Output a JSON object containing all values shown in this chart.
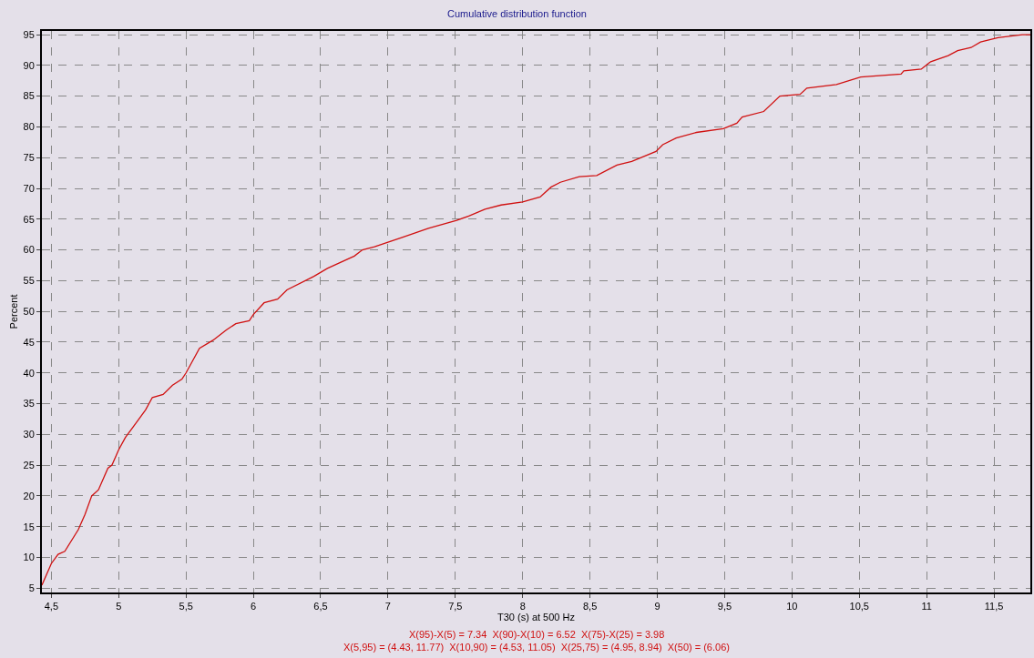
{
  "chart_data": {
    "type": "line",
    "title": "Cumulative distribution function",
    "xlabel": "T30 (s) at 500 Hz",
    "ylabel": "Percent",
    "annotations": [
      "X(95)-X(5) = 7.34  X(90)-X(10) = 6.52  X(75)-X(25) = 3.98",
      "X(5,95) = (4.43, 11.77)  X(10,90) = (4.53, 11.05)  X(25,75) = (4.95, 8.94)  X(50) = (6.06)"
    ],
    "series": [
      {
        "color": "#d01010",
        "x": [
          4.43,
          4.5,
          4.55,
          4.6,
          4.7,
          4.75,
          4.8,
          4.85,
          4.92,
          4.95,
          5.0,
          5.05,
          5.1,
          5.2,
          5.25,
          5.33,
          5.4,
          5.47,
          5.5,
          5.55,
          5.6,
          5.7,
          5.8,
          5.87,
          5.97,
          6.0,
          6.08,
          6.18,
          6.25,
          6.45,
          6.55,
          6.65,
          6.75,
          6.81,
          6.9,
          7.02,
          7.1,
          7.3,
          7.51,
          7.6,
          7.72,
          7.84,
          8.0,
          8.13,
          8.21,
          8.28,
          8.42,
          8.55,
          8.7,
          8.81,
          8.99,
          9.04,
          9.14,
          9.29,
          9.49,
          9.59,
          9.63,
          9.79,
          9.91,
          10.06,
          10.11,
          10.33,
          10.51,
          10.81,
          10.83,
          10.96,
          11.03,
          11.16,
          11.23,
          11.33,
          11.4,
          11.53,
          11.71,
          11.77
        ],
        "values": [
          5.5,
          9,
          10.5,
          11,
          14.5,
          17,
          20,
          21,
          24.5,
          25,
          27.5,
          29.5,
          31,
          34,
          36,
          36.5,
          38,
          39,
          40,
          42,
          44,
          45.3,
          47,
          48,
          48.5,
          49.5,
          51.4,
          52,
          53.5,
          55.7,
          57,
          58,
          59,
          60,
          60.5,
          61.4,
          62,
          63.5,
          64.8,
          65.5,
          66.6,
          67.3,
          67.8,
          68.6,
          70.2,
          71,
          71.9,
          72.1,
          73.8,
          74.4,
          76,
          77.1,
          78.2,
          79.1,
          79.7,
          80.6,
          81.6,
          82.5,
          85,
          85.3,
          86.3,
          86.9,
          88.1,
          88.6,
          89.1,
          89.4,
          90.6,
          91.6,
          92.4,
          92.9,
          93.8,
          94.5,
          95,
          95
        ]
      }
    ],
    "xlim": [
      4.43,
      11.77
    ],
    "ylim": [
      4.3,
      95.6
    ],
    "xticks": [
      {
        "value": 4.5,
        "label": "4,5"
      },
      5,
      {
        "value": 5.5,
        "label": "5,5"
      },
      6,
      {
        "value": 6.5,
        "label": "6,5"
      },
      7,
      {
        "value": 7.5,
        "label": "7,5"
      },
      8,
      {
        "value": 8.5,
        "label": "8,5"
      },
      9,
      {
        "value": 9.5,
        "label": "9,5"
      },
      10,
      {
        "value": 10.5,
        "label": "10,5"
      },
      11,
      {
        "value": 11.5,
        "label": "11,5"
      }
    ],
    "yticks": [
      5,
      10,
      15,
      20,
      25,
      30,
      35,
      40,
      45,
      50,
      55,
      60,
      65,
      70,
      75,
      80,
      85,
      90,
      95
    ],
    "grid": true,
    "line_style": "solid",
    "marker": "none"
  }
}
